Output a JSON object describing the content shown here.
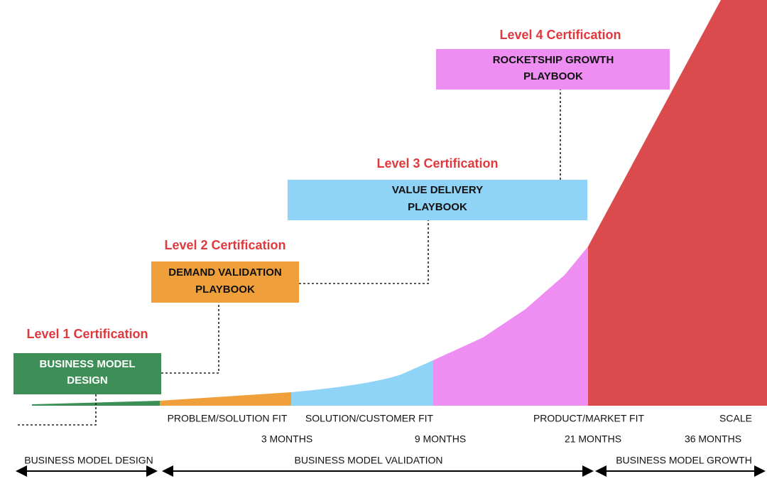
{
  "levels": [
    {
      "certification": "Level 1 Certification",
      "playbook": [
        "BUSINESS MODEL",
        "DESIGN"
      ]
    },
    {
      "certification": "Level 2 Certification",
      "playbook": [
        "DEMAND VALIDATION",
        "PLAYBOOK"
      ]
    },
    {
      "certification": "Level 3 Certification",
      "playbook": [
        "VALUE DELIVERY",
        "PLAYBOOK"
      ]
    },
    {
      "certification": "Level 4 Certification",
      "playbook": [
        "ROCKETSHIP GROWTH",
        "PLAYBOOK"
      ]
    }
  ],
  "stages": [
    "PROBLEM/SOLUTION FIT",
    "SOLUTION/CUSTOMER FIT",
    "PRODUCT/MARKET FIT",
    "SCALE"
  ],
  "durations": [
    "3 MONTHS",
    "9 MONTHS",
    "21 MONTHS",
    "36 MONTHS"
  ],
  "phases": [
    "BUSINESS MODEL DESIGN",
    "BUSINESS MODEL VALIDATION",
    "BUSINESS MODEL GROWTH"
  ]
}
